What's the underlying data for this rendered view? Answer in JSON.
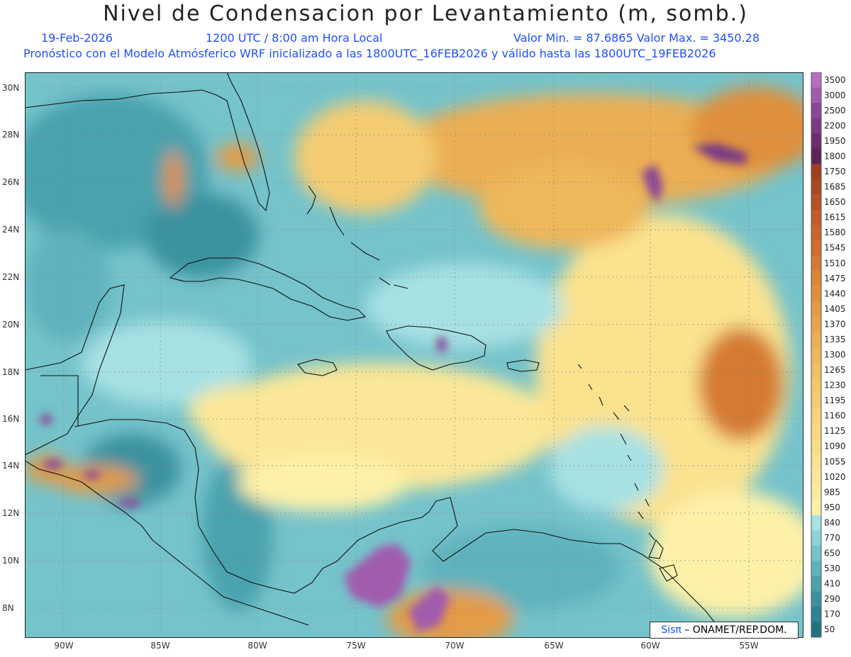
{
  "title": "Nivel de Condensacion por Levantamiento (m, somb.)",
  "date": "19-Feb-2026",
  "time": "1200 UTC / 8:00 am Hora Local",
  "minmax": "Valor Min. = 87.6865  Valor Max. = 3450.28",
  "forecast": "Pronóstico con el Modelo Atmósferico WRF inicializado a las 1800UTC_16FEB2026 y válido hasta las  1800UTC_19FEB2026",
  "lon_ticks": [
    "90W",
    "85W",
    "80W",
    "75W",
    "70W",
    "65W",
    "60W",
    "55W"
  ],
  "lat_ticks": [
    "30N",
    "28N",
    "26N",
    "24N",
    "22N",
    "20N",
    "18N",
    "16N",
    "14N",
    "12N",
    "10N",
    "8N"
  ],
  "legend_levels": [
    "3500",
    "3000",
    "2500",
    "2200",
    "1950",
    "1800",
    "1750",
    "1685",
    "1650",
    "1615",
    "1580",
    "1545",
    "1510",
    "1475",
    "1440",
    "1405",
    "1370",
    "1335",
    "1300",
    "1265",
    "1230",
    "1195",
    "1160",
    "1125",
    "1090",
    "1055",
    "1020",
    "985",
    "950",
    "840",
    "770",
    "650",
    "530",
    "410",
    "290",
    "170",
    "50"
  ],
  "legend_colors": [
    "#b56fbf",
    "#a15cad",
    "#8a4796",
    "#7a3a84",
    "#6a2e70",
    "#5b2558",
    "#9e3f1e",
    "#a84822",
    "#b45226",
    "#bf5c29",
    "#c8662c",
    "#cf6f2f",
    "#d57a33",
    "#da8538",
    "#df903d",
    "#e39b44",
    "#e7a54b",
    "#ebae52",
    "#eeb75a",
    "#f0bf62",
    "#f2c66a",
    "#f4cc72",
    "#f6d27a",
    "#f7d781",
    "#f9dc88",
    "#fae28f",
    "#fbe797",
    "#fcec9f",
    "#fdf1a8",
    "#a7e1e3",
    "#8ed3d8",
    "#75c3cb",
    "#5eb3bd",
    "#4aa2ae",
    "#3a92a0",
    "#2e8291",
    "#227282"
  ],
  "credit_brand": "Sisπ",
  "credit_text": " – ONAMET/REP.DOM."
}
